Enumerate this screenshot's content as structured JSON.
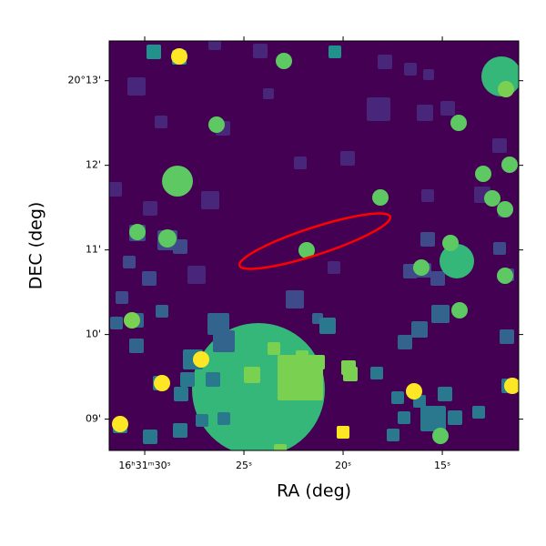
{
  "chart_data": {
    "type": "image",
    "xlabel": "RA (deg)",
    "ylabel": "DEC (deg)",
    "xlim": [
      31.79,
      11.15
    ],
    "ylim": [
      8.63,
      13.47
    ],
    "xticks": [
      {
        "value": 30,
        "label": "16ʰ31ᵐ30ˢ"
      },
      {
        "value": 25,
        "label": "25ˢ"
      },
      {
        "value": 20,
        "label": "20ˢ"
      },
      {
        "value": 15,
        "label": "15ˢ"
      }
    ],
    "yticks": [
      {
        "value": 13,
        "label": "20°13'"
      },
      {
        "value": 12,
        "label": "12'"
      },
      {
        "value": 11,
        "label": "11'"
      },
      {
        "value": 10,
        "label": "10'"
      },
      {
        "value": 9,
        "label": "09'"
      }
    ]
  }
}
